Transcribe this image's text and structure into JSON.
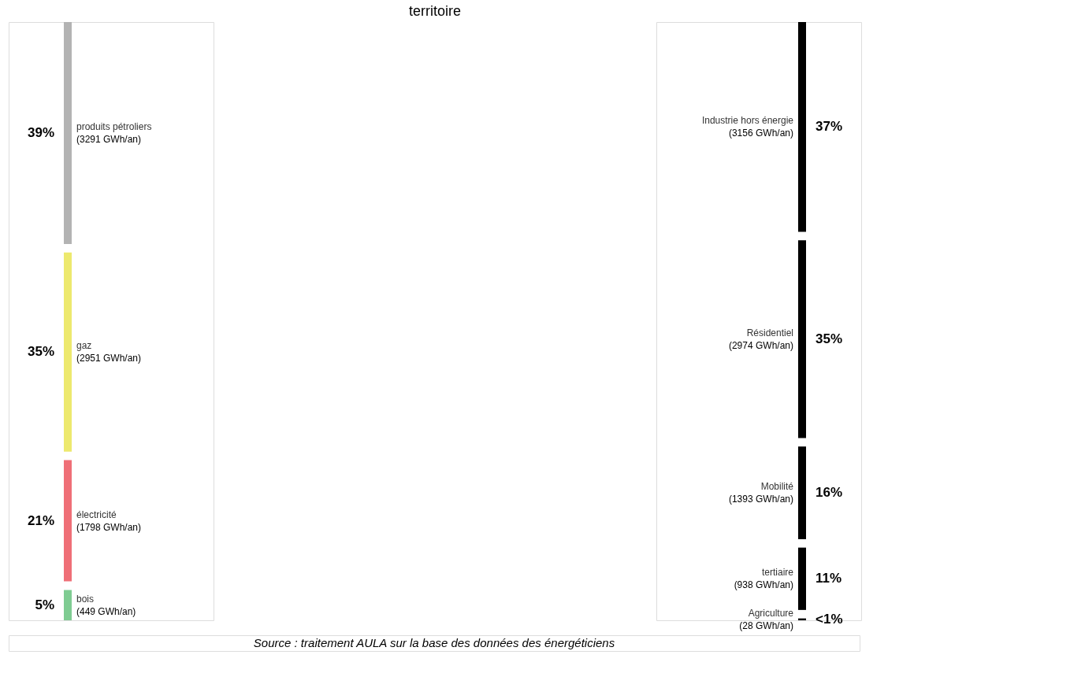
{
  "chart_data": [
    {
      "type": "other",
      "title": "territoire",
      "categories": [
        "produits pétroliers",
        "gaz",
        "électricité",
        "bois"
      ],
      "values": [
        3291,
        2951,
        1798,
        449
      ],
      "value_labels": [
        "(3291 GWh/an)",
        "(2951 GWh/an)",
        "(1798 GWh/an)",
        "(449 GWh/an)"
      ],
      "colors": [
        "#b3b3b3",
        "#ede96e",
        "#ef6f77",
        "#7fcc92"
      ],
      "annotations": [
        "39%",
        "35%",
        "21%",
        "5%",
        "Source : traitement AULA sur la base des données des énergéticiens"
      ]
    },
    {
      "type": "other",
      "categories": [
        "Industrie hors énergie",
        "Résidentiel",
        "Mobilité",
        "tertiaire",
        "Agriculture"
      ],
      "values": [
        3156,
        2974,
        1393,
        938,
        28
      ],
      "value_labels": [
        "(3156 GWh/an)",
        "(2974 GWh/an)",
        "(1393 GWh/an)",
        "(938 GWh/an)",
        "(28 GWh/an)"
      ],
      "colors": [
        "#000000",
        "#000000",
        "#000000",
        "#000000",
        "#000000"
      ],
      "annotations": [
        "37%",
        "35%",
        "16%",
        "11%",
        "<1%"
      ]
    }
  ]
}
